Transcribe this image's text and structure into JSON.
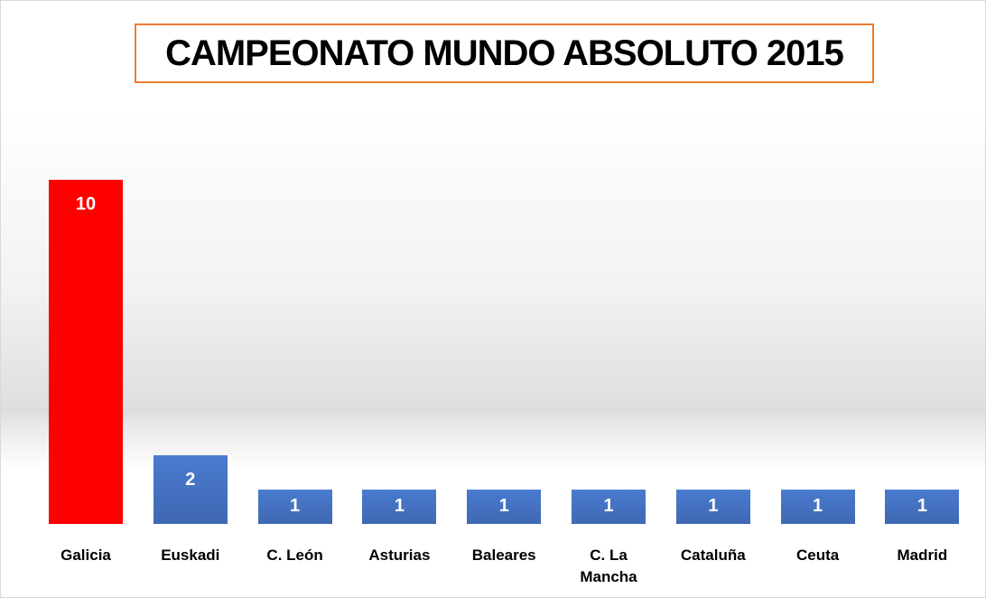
{
  "chart_data": {
    "type": "bar",
    "title": "CAMPEONATO MUNDO ABSOLUTO 2015",
    "categories": [
      "Galicia",
      "Euskadi",
      "C. León",
      "Asturias",
      "Baleares",
      "C. La Mancha",
      "Cataluña",
      "Ceuta",
      "Madrid"
    ],
    "values": [
      10,
      2,
      1,
      1,
      1,
      1,
      1,
      1,
      1
    ],
    "colors": [
      "#ff0000",
      "#4472c4",
      "#4472c4",
      "#4472c4",
      "#4472c4",
      "#4472c4",
      "#4472c4",
      "#4472c4",
      "#4472c4"
    ],
    "grid": false
  }
}
